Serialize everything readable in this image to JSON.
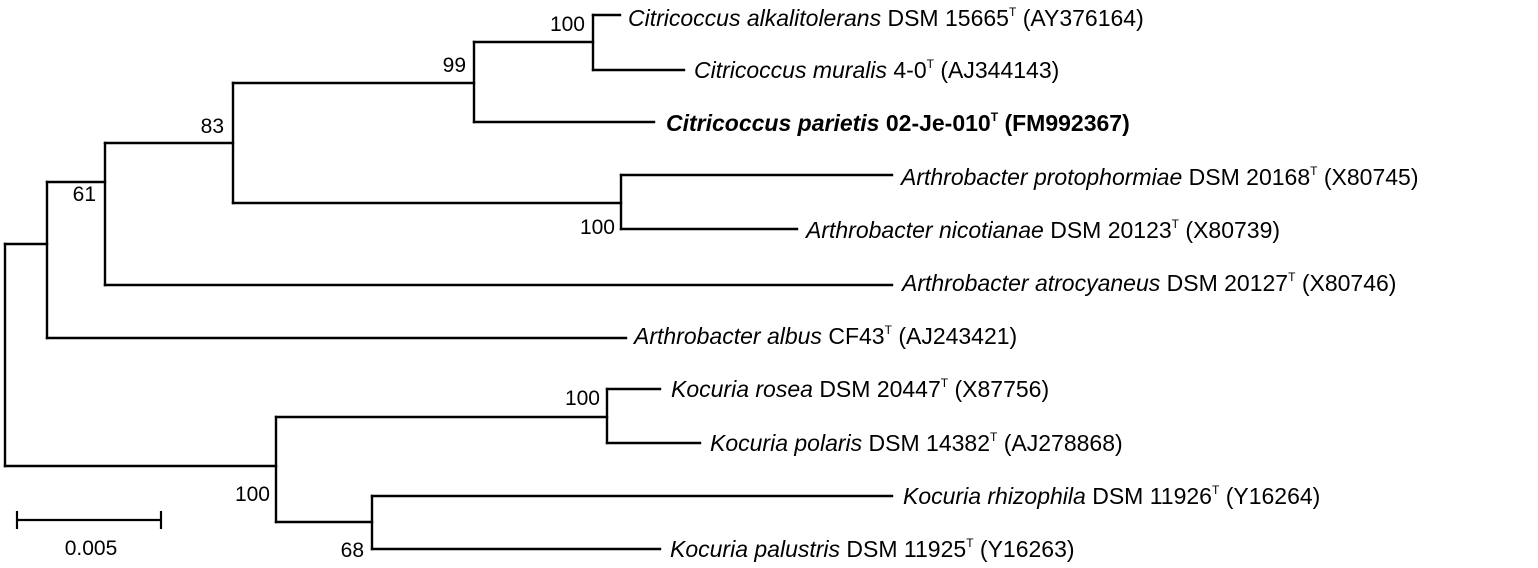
{
  "tree": {
    "taxa": [
      {
        "id": "t1",
        "species": "Citricoccus alkalitolerans",
        "strain": "DSM 15665",
        "type_mark": "T",
        "accession": "(AY376164)",
        "highlight": false
      },
      {
        "id": "t2",
        "species": "Citricoccus muralis",
        "strain": "4-0",
        "type_mark": "T",
        "accession": "(AJ344143)",
        "highlight": false
      },
      {
        "id": "t3",
        "species": "Citricoccus parietis",
        "strain": "02-Je-010",
        "type_mark": "T",
        "accession": "(FM992367)",
        "highlight": true
      },
      {
        "id": "t4",
        "species": "Arthrobacter protophormiae",
        "strain": "DSM 20168",
        "type_mark": "T",
        "accession": "(X80745)",
        "highlight": false
      },
      {
        "id": "t5",
        "species": "Arthrobacter nicotianae",
        "strain": "DSM 20123",
        "type_mark": "T",
        "accession": "(X80739)",
        "highlight": false
      },
      {
        "id": "t6",
        "species": "Arthrobacter atrocyaneus",
        "strain": "DSM 20127",
        "type_mark": "T",
        "accession": "(X80746)",
        "highlight": false
      },
      {
        "id": "t7",
        "species": "Arthrobacter albus",
        "strain": "CF43",
        "type_mark": "T",
        "accession": "(AJ243421)",
        "highlight": false
      },
      {
        "id": "t8",
        "species": "Kocuria rosea",
        "strain": "DSM 20447",
        "type_mark": "T",
        "accession": "(X87756)",
        "highlight": false
      },
      {
        "id": "t9",
        "species": "Kocuria polaris",
        "strain": "DSM 14382",
        "type_mark": "T",
        "accession": "(AJ278868)",
        "highlight": false
      },
      {
        "id": "t10",
        "species": "Kocuria rhizophila",
        "strain": "DSM 11926",
        "type_mark": "T",
        "accession": "(Y16264)",
        "highlight": false
      },
      {
        "id": "t11",
        "species": "Kocuria palustris",
        "strain": "DSM 11925",
        "type_mark": "T",
        "accession": "(Y16263)",
        "highlight": false
      }
    ],
    "bootstrap": [
      {
        "clade": "alkalitolerans-muralis",
        "value": "100"
      },
      {
        "clade": "citricoccus",
        "value": "99"
      },
      {
        "clade": "citricoccus-arthrobacter-pair",
        "value": "83"
      },
      {
        "clade": "protophormiae-nicotianae",
        "value": "100"
      },
      {
        "clade": "with-atrocyaneus",
        "value": "61"
      },
      {
        "clade": "rosea-polaris",
        "value": "100"
      },
      {
        "clade": "kocuria",
        "value": "100"
      },
      {
        "clade": "rhizophila-palustris",
        "value": "68"
      }
    ],
    "scale_bar": {
      "label": "0.005",
      "value": 0.005
    }
  },
  "colors": {
    "line": "#000000",
    "text": "#000000",
    "background": "#ffffff"
  }
}
